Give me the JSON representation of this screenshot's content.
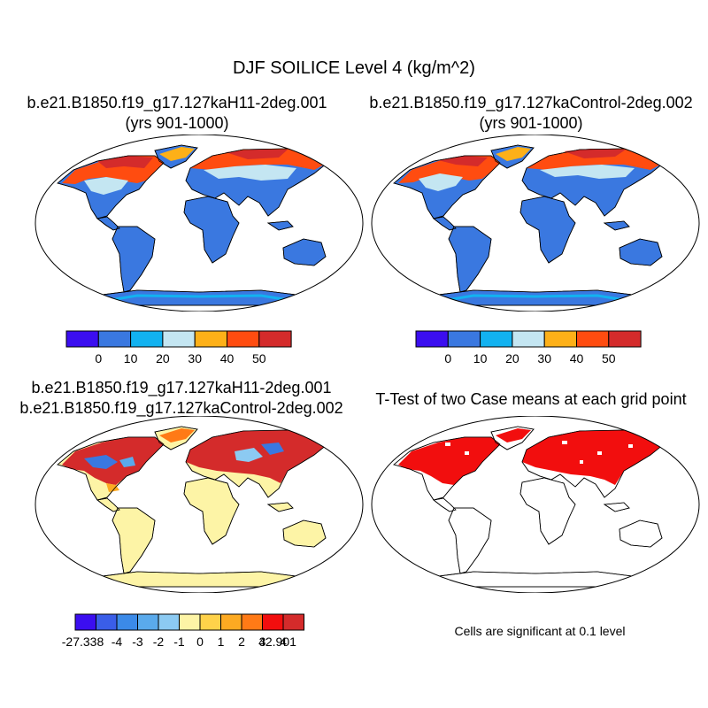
{
  "title": "DJF SOILICE Level 4 (kg/m^2)",
  "panels": [
    {
      "title_line1": "b.e21.B1850.f19_g17.127kaH11-2deg.001",
      "title_line2": "(yrs 901-1000)"
    },
    {
      "title_line1": "b.e21.B1850.f19_g17.127kaControl-2deg.002",
      "title_line2": "(yrs 901-1000)"
    },
    {
      "title_line1": "b.e21.B1850.f19_g17.127kaH11-2deg.001",
      "title_line2": "b.e21.B1850.f19_g17.127kaControl-2deg.002"
    },
    {
      "title_line1": "T-Test of two Case means at each grid point"
    }
  ],
  "colorbar_main": {
    "colors": [
      "#3b0ef0",
      "#3a78e0",
      "#12b2f0",
      "#c4e6f2",
      "#fdb018",
      "#ff4c10",
      "#d42b2b"
    ],
    "labels": [
      "0",
      "10",
      "20",
      "30",
      "40",
      "50"
    ]
  },
  "colorbar_diff": {
    "colors": [
      "#3b0ef0",
      "#3a5ee8",
      "#3b8ae8",
      "#5aaaec",
      "#8ccaf2",
      "#fdf4a6",
      "#ffd24a",
      "#fdaa22",
      "#ff7a16",
      "#f20e0e",
      "#d42b2b"
    ],
    "labels": [
      "-27.338",
      "-4",
      "-3",
      "-2",
      "-1",
      "0",
      "1",
      "2",
      "3",
      "4",
      "42.901"
    ]
  },
  "significance_note": "Cells are significant at 0.1 level",
  "map_colors": {
    "land_blue": "#3a78e0",
    "light_blue": "#c4e6f2",
    "mid_blue": "#12b2f0",
    "orange": "#fdb018",
    "red_orange": "#ff4c10",
    "dark_red": "#d42b2b",
    "diff_yellow": "#fdf4a6",
    "sig_red": "#f20e0e"
  }
}
